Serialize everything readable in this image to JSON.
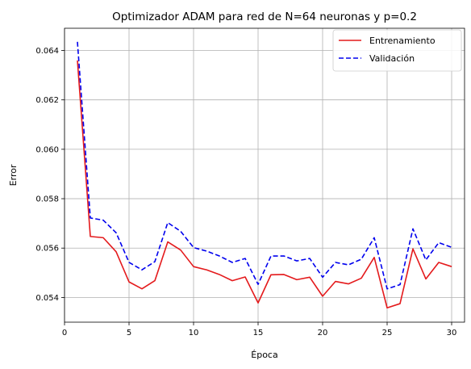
{
  "chart_data": {
    "type": "line",
    "title": "Optimizador ADAM para red de N=64 neuronas y p=0.2",
    "xlabel": "Época",
    "ylabel": "Error",
    "xlim": [
      0,
      31
    ],
    "ylim": [
      0.053,
      0.0649
    ],
    "xticks": [
      0,
      5,
      10,
      15,
      20,
      25,
      30
    ],
    "xtick_labels": [
      "0",
      "5",
      "10",
      "15",
      "20",
      "25",
      "30"
    ],
    "yticks": [
      0.054,
      0.056,
      0.058,
      0.06,
      0.062,
      0.064
    ],
    "ytick_labels": [
      "0.054",
      "0.056",
      "0.058",
      "0.060",
      "0.062",
      "0.064"
    ],
    "grid": true,
    "legend_position": "top-right",
    "x": [
      1,
      2,
      3,
      4,
      5,
      6,
      7,
      8,
      9,
      10,
      11,
      12,
      13,
      14,
      15,
      16,
      17,
      18,
      19,
      20,
      21,
      22,
      23,
      24,
      25,
      26,
      27,
      28,
      29,
      30
    ],
    "series": [
      {
        "name": "Entrenamiento",
        "color": "#e41a1c",
        "line_style": "solid",
        "values": [
          0.0636,
          0.05647,
          0.05642,
          0.05585,
          0.05463,
          0.05435,
          0.05468,
          0.05625,
          0.05592,
          0.05525,
          0.05512,
          0.05493,
          0.05468,
          0.05483,
          0.05378,
          0.05492,
          0.05493,
          0.05472,
          0.05482,
          0.05405,
          0.05465,
          0.05455,
          0.05478,
          0.05562,
          0.05358,
          0.05375,
          0.05597,
          0.05475,
          0.05542,
          0.05525
        ]
      },
      {
        "name": "Validación",
        "color": "#0000ee",
        "line_style": "dashed",
        "values": [
          0.06435,
          0.05722,
          0.05713,
          0.05662,
          0.05542,
          0.05512,
          0.05545,
          0.05703,
          0.05668,
          0.05602,
          0.05588,
          0.05568,
          0.05542,
          0.05558,
          0.05453,
          0.05568,
          0.05568,
          0.05548,
          0.05558,
          0.05482,
          0.05542,
          0.05532,
          0.05555,
          0.05642,
          0.05435,
          0.05452,
          0.05678,
          0.05552,
          0.05622,
          0.05603
        ]
      }
    ]
  }
}
